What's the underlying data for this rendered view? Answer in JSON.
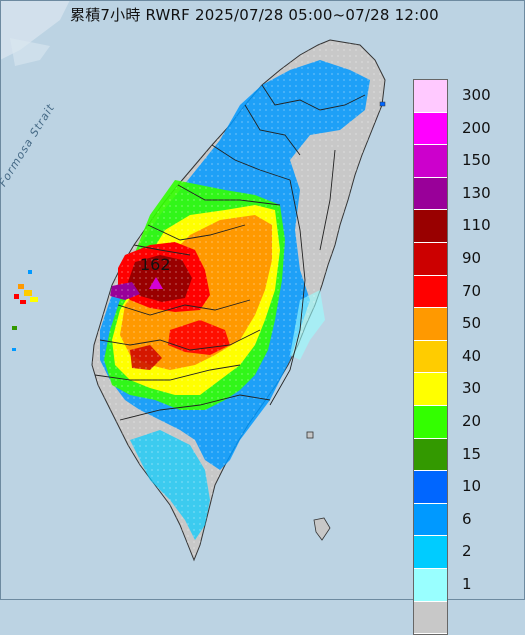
{
  "title": "累積7小時 RWRF 2025/07/28 05:00~07/28 12:00",
  "strait_label": "Formosa Strait",
  "peak": {
    "value": "162"
  },
  "legend": [
    {
      "label": "300",
      "color": "#ffc9ff"
    },
    {
      "label": "200",
      "color": "#ff00ff"
    },
    {
      "label": "150",
      "color": "#cc00cc"
    },
    {
      "label": "130",
      "color": "#990099"
    },
    {
      "label": "110",
      "color": "#990000"
    },
    {
      "label": "90",
      "color": "#cc0000"
    },
    {
      "label": "70",
      "color": "#ff0000"
    },
    {
      "label": "50",
      "color": "#ff9900"
    },
    {
      "label": "40",
      "color": "#ffcc00"
    },
    {
      "label": "30",
      "color": "#ffff00"
    },
    {
      "label": "20",
      "color": "#33ff00"
    },
    {
      "label": "15",
      "color": "#339900"
    },
    {
      "label": "10",
      "color": "#0066ff"
    },
    {
      "label": "6",
      "color": "#0099ff"
    },
    {
      "label": "2",
      "color": "#00ccff"
    },
    {
      "label": "1",
      "color": "#99ffff"
    },
    {
      "label": "",
      "color": "#c8c8c8"
    }
  ]
}
